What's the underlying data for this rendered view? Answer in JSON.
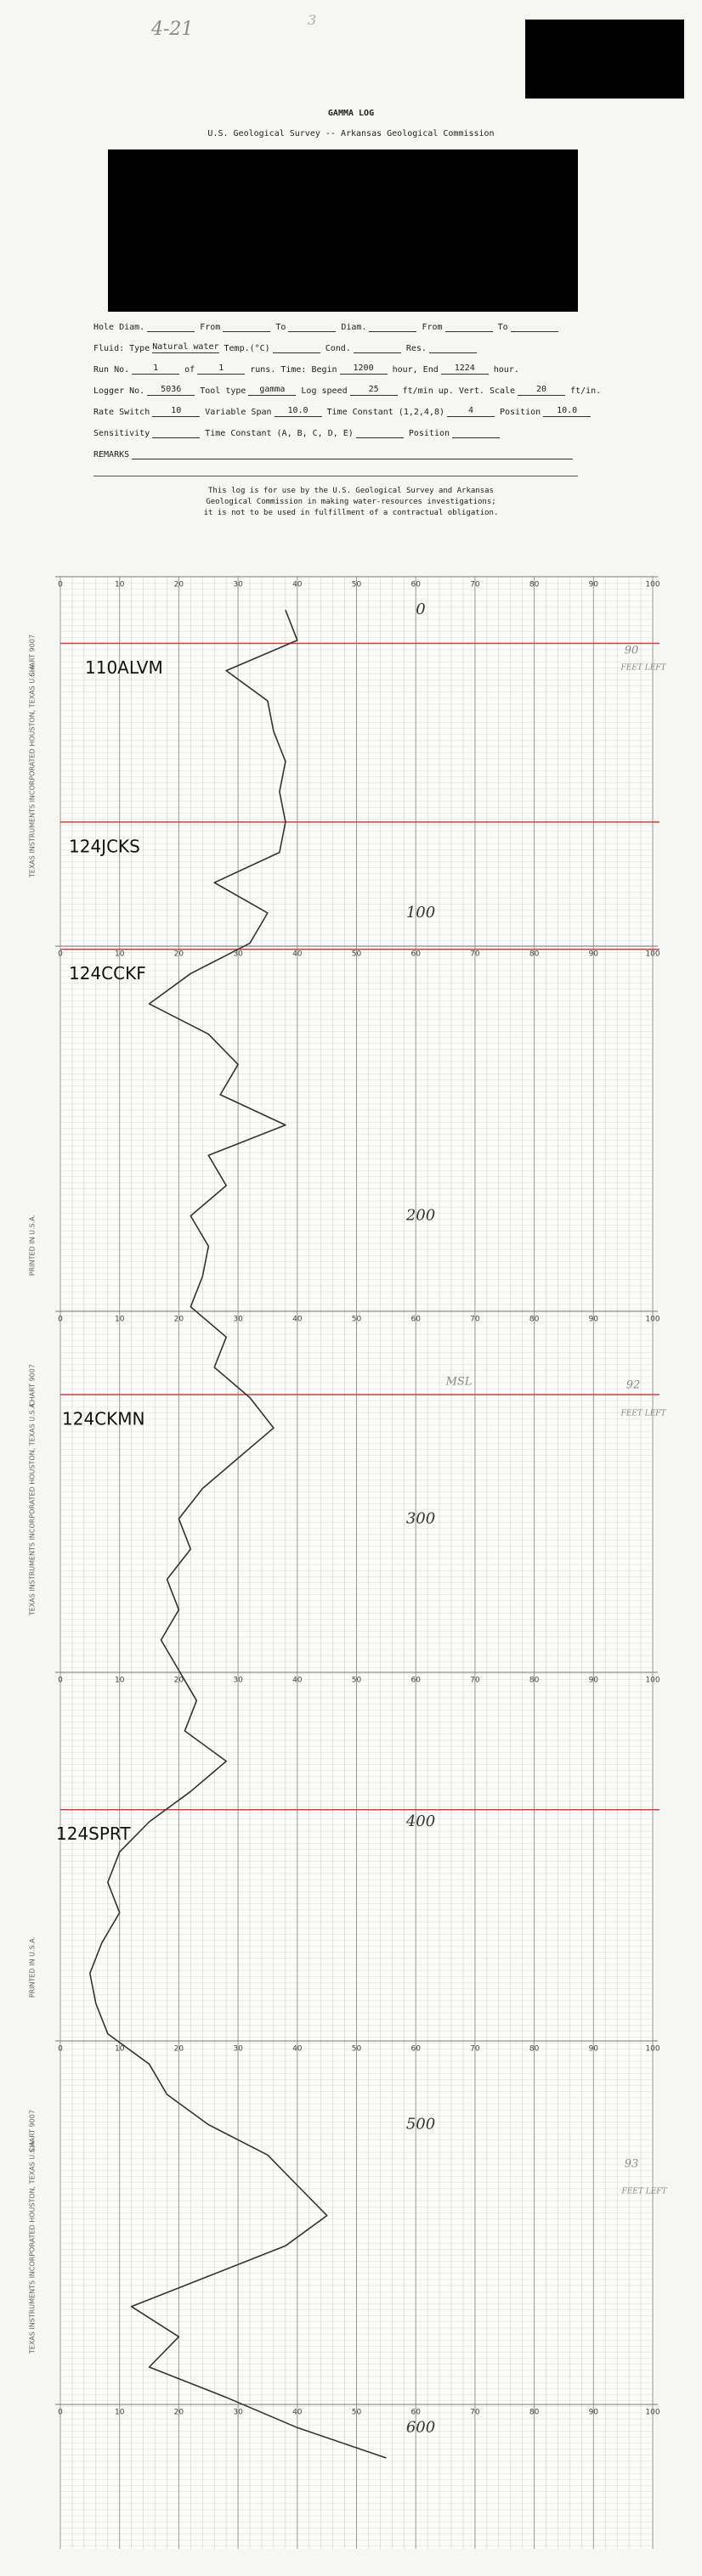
{
  "header": {
    "page_note": "4-21",
    "page_number": "3",
    "title": "GAMMA LOG",
    "subtitle": "U.S. Geological Survey -- Arkansas Geological Commission"
  },
  "form": {
    "rows": [
      [
        {
          "label": "Hole Diam.",
          "value": null
        },
        {
          "label": "From",
          "value": null
        },
        {
          "label": "To",
          "value": null
        },
        {
          "label": "Diam.",
          "value": null
        },
        {
          "label": "From",
          "value": null
        },
        {
          "label": "To",
          "value": null
        }
      ],
      [
        {
          "label": "Fluid: Type",
          "value": "Natural water"
        },
        {
          "label": "Temp.(°C)",
          "value": null
        },
        {
          "label": "Cond.",
          "value": null
        },
        {
          "label": "Res.",
          "value": null
        }
      ],
      [
        {
          "label": "Run No.",
          "value": "1"
        },
        {
          "label": "of",
          "value": "1"
        },
        {
          "label": "runs. Time: Begin",
          "value": "1200"
        },
        {
          "label": "hour, End",
          "value": "1224"
        },
        {
          "label": "hour."
        }
      ],
      [
        {
          "label": "Logger No.",
          "value": "5036"
        },
        {
          "label": "Tool type",
          "value": "gamma"
        },
        {
          "label": "Log speed",
          "value": "25"
        },
        {
          "label": "ft/min up. Vert. Scale",
          "value": "20"
        },
        {
          "label": "ft/in."
        }
      ],
      [
        {
          "label": "Rate Switch",
          "value": "10"
        },
        {
          "label": "Variable Span",
          "value": "10.0"
        },
        {
          "label": "Time Constant (1,2,4,8)",
          "value": "4"
        },
        {
          "label": "Position",
          "value": "10.0"
        }
      ],
      [
        {
          "label": "Sensitivity",
          "value": null
        },
        {
          "label": "Time Constant (A, B, C, D, E)",
          "value": null
        },
        {
          "label": "Position",
          "value": null
        }
      ],
      [
        {
          "label": "REMARKS",
          "value": null
        }
      ]
    ]
  },
  "disclaimer": [
    "This log is for use by the U.S. Geological Survey and Arkansas",
    "Geological Commission in making water-resources investigations;",
    "it is not to be used in fulfillment of a contractual obligation."
  ],
  "chart_data": {
    "type": "line",
    "orientation": "vertical",
    "color": "#333333",
    "grid": true,
    "x": [
      0,
      10,
      20,
      30,
      40,
      50,
      60,
      70,
      80,
      90,
      100,
      110,
      120,
      130,
      140,
      150,
      160,
      170,
      180,
      190,
      200,
      210,
      220,
      230,
      240,
      250,
      260,
      270,
      280,
      290,
      300,
      310,
      320,
      330,
      340,
      350,
      360,
      370,
      380,
      390,
      400,
      410,
      420,
      430,
      440,
      450,
      460,
      470,
      480,
      490,
      500,
      510,
      520,
      530,
      540,
      550,
      560,
      570,
      580,
      590,
      600,
      610
    ],
    "values": [
      38,
      40,
      28,
      35,
      36,
      38,
      37,
      38,
      37,
      26,
      35,
      32,
      22,
      15,
      25,
      30,
      27,
      38,
      25,
      28,
      22,
      25,
      24,
      22,
      28,
      26,
      32,
      36,
      30,
      24,
      20,
      22,
      18,
      20,
      17,
      20,
      23,
      21,
      28,
      22,
      15,
      10,
      8,
      10,
      7,
      5,
      6,
      8,
      15,
      18,
      25,
      35,
      40,
      45,
      38,
      25,
      12,
      20,
      15,
      28,
      40,
      55
    ],
    "xlim": [
      -11,
      640
    ],
    "xticks": [
      0,
      100,
      200,
      300,
      400,
      500,
      600
    ],
    "ylim": [
      0,
      100
    ],
    "yticks": [
      0,
      10,
      20,
      30,
      40,
      50,
      60,
      70,
      80,
      90,
      100
    ]
  },
  "formation_tops": [
    {
      "label": "110ALVM",
      "depth": 11
    },
    {
      "label": "124JCKS",
      "depth": 70
    },
    {
      "label": "124CCKF",
      "depth": 112
    },
    {
      "label": "124CKMN",
      "depth": 259
    },
    {
      "label": "124SPRT",
      "depth": 396
    }
  ],
  "annotations": [
    "90",
    "FEET LEFT",
    "92",
    "FEET LEFT",
    "MSL",
    "93",
    "FEET LEFT"
  ],
  "paper_text": [
    "TEXAS INSTRUMENTS INCORPORATED HOUSTON, TEXAS U.S.A.",
    "CHART 9007",
    "PRINTED IN U.S.A."
  ]
}
